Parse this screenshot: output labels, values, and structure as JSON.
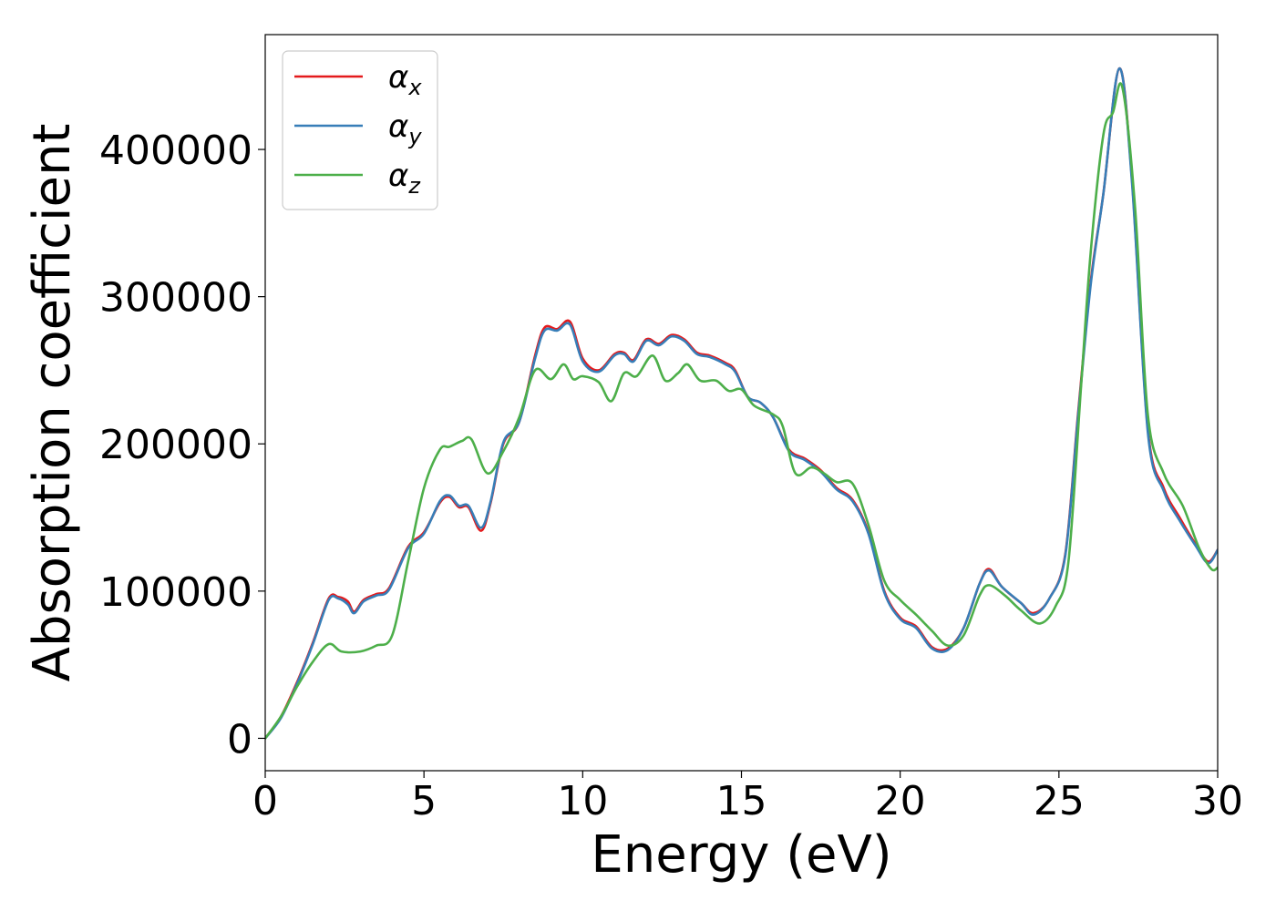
{
  "chart_data": {
    "type": "line",
    "title": "",
    "xlabel": "Energy (eV)",
    "ylabel": "Absorption coefficient",
    "xlim": [
      0,
      30
    ],
    "ylim": [
      -22000,
      478000
    ],
    "xticks": [
      0,
      5,
      10,
      15,
      20,
      25,
      30
    ],
    "yticks": [
      0,
      100000,
      200000,
      300000,
      400000
    ],
    "xtick_labels": [
      "0",
      "5",
      "10",
      "15",
      "20",
      "25",
      "30"
    ],
    "ytick_labels": [
      "0",
      "100000",
      "200000",
      "300000",
      "400000"
    ],
    "grid": false,
    "legend_position": "upper-left",
    "series": [
      {
        "name": "α",
        "subscript": "x",
        "color": "#e41a1c",
        "points": [
          [
            0,
            0
          ],
          [
            0.5,
            15000
          ],
          [
            1,
            38000
          ],
          [
            1.5,
            65000
          ],
          [
            2,
            95000
          ],
          [
            2.3,
            96000
          ],
          [
            2.6,
            93000
          ],
          [
            2.8,
            86000
          ],
          [
            3.1,
            94000
          ],
          [
            3.5,
            98000
          ],
          [
            3.9,
            102000
          ],
          [
            4.5,
            130000
          ],
          [
            5,
            140000
          ],
          [
            5.5,
            160000
          ],
          [
            5.8,
            164000
          ],
          [
            6.1,
            157000
          ],
          [
            6.4,
            157000
          ],
          [
            6.8,
            141000
          ],
          [
            7.1,
            160000
          ],
          [
            7.5,
            200000
          ],
          [
            8,
            215000
          ],
          [
            8.5,
            260000
          ],
          [
            8.8,
            279000
          ],
          [
            9.2,
            278000
          ],
          [
            9.6,
            283000
          ],
          [
            10,
            258000
          ],
          [
            10.5,
            250000
          ],
          [
            11,
            261000
          ],
          [
            11.3,
            262000
          ],
          [
            11.6,
            257000
          ],
          [
            12,
            271000
          ],
          [
            12.4,
            268000
          ],
          [
            12.8,
            274000
          ],
          [
            13.2,
            271000
          ],
          [
            13.6,
            262000
          ],
          [
            14,
            260000
          ],
          [
            14.5,
            255000
          ],
          [
            14.8,
            250000
          ],
          [
            15.2,
            232000
          ],
          [
            15.6,
            228000
          ],
          [
            16,
            218000
          ],
          [
            16.5,
            196000
          ],
          [
            17,
            190000
          ],
          [
            17.5,
            182000
          ],
          [
            18,
            170000
          ],
          [
            18.5,
            162000
          ],
          [
            19,
            140000
          ],
          [
            19.5,
            100000
          ],
          [
            20,
            82000
          ],
          [
            20.5,
            76000
          ],
          [
            21,
            62000
          ],
          [
            21.5,
            61000
          ],
          [
            22,
            75000
          ],
          [
            22.5,
            105000
          ],
          [
            22.8,
            115000
          ],
          [
            23.2,
            103000
          ],
          [
            23.8,
            92000
          ],
          [
            24.2,
            85000
          ],
          [
            24.7,
            95000
          ],
          [
            25.2,
            125000
          ],
          [
            25.6,
            220000
          ],
          [
            26,
            310000
          ],
          [
            26.4,
            370000
          ],
          [
            26.9,
            455000
          ],
          [
            27.3,
            380000
          ],
          [
            27.8,
            210000
          ],
          [
            28.3,
            170000
          ],
          [
            28.8,
            150000
          ],
          [
            29.3,
            132000
          ],
          [
            29.7,
            120000
          ],
          [
            30,
            128000
          ]
        ]
      },
      {
        "name": "α",
        "subscript": "y",
        "color": "#377eb8",
        "points": [
          [
            0,
            0
          ],
          [
            0.5,
            14000
          ],
          [
            1,
            37000
          ],
          [
            1.5,
            64000
          ],
          [
            2,
            94000
          ],
          [
            2.3,
            95000
          ],
          [
            2.6,
            91000
          ],
          [
            2.8,
            85000
          ],
          [
            3.1,
            93000
          ],
          [
            3.5,
            97000
          ],
          [
            3.9,
            101000
          ],
          [
            4.5,
            129000
          ],
          [
            5,
            139000
          ],
          [
            5.5,
            161000
          ],
          [
            5.8,
            165000
          ],
          [
            6.1,
            158000
          ],
          [
            6.4,
            158000
          ],
          [
            6.8,
            143000
          ],
          [
            7.1,
            161000
          ],
          [
            7.5,
            201000
          ],
          [
            8,
            215000
          ],
          [
            8.5,
            258000
          ],
          [
            8.8,
            277000
          ],
          [
            9.2,
            277000
          ],
          [
            9.6,
            281000
          ],
          [
            10,
            256000
          ],
          [
            10.5,
            249000
          ],
          [
            11,
            260000
          ],
          [
            11.3,
            261000
          ],
          [
            11.6,
            256000
          ],
          [
            12,
            270000
          ],
          [
            12.4,
            267000
          ],
          [
            12.8,
            273000
          ],
          [
            13.2,
            270000
          ],
          [
            13.6,
            261000
          ],
          [
            14,
            259000
          ],
          [
            14.5,
            254000
          ],
          [
            14.8,
            249000
          ],
          [
            15.2,
            232000
          ],
          [
            15.6,
            228000
          ],
          [
            16,
            218000
          ],
          [
            16.5,
            195000
          ],
          [
            17,
            189000
          ],
          [
            17.5,
            181000
          ],
          [
            18,
            169000
          ],
          [
            18.5,
            161000
          ],
          [
            19,
            139000
          ],
          [
            19.5,
            99000
          ],
          [
            20,
            81000
          ],
          [
            20.5,
            75000
          ],
          [
            21,
            61000
          ],
          [
            21.5,
            60000
          ],
          [
            22,
            75000
          ],
          [
            22.5,
            105000
          ],
          [
            22.8,
            114000
          ],
          [
            23.2,
            103000
          ],
          [
            23.8,
            92000
          ],
          [
            24.2,
            84000
          ],
          [
            24.7,
            95000
          ],
          [
            25.2,
            124000
          ],
          [
            25.6,
            218000
          ],
          [
            26,
            308000
          ],
          [
            26.4,
            370000
          ],
          [
            26.9,
            455000
          ],
          [
            27.3,
            378000
          ],
          [
            27.8,
            208000
          ],
          [
            28.3,
            168000
          ],
          [
            28.8,
            148000
          ],
          [
            29.3,
            131000
          ],
          [
            29.7,
            119000
          ],
          [
            30,
            128000
          ]
        ]
      },
      {
        "name": "α",
        "subscript": "z",
        "color": "#4daf4a",
        "points": [
          [
            0,
            0
          ],
          [
            0.5,
            15000
          ],
          [
            1,
            35000
          ],
          [
            1.5,
            52000
          ],
          [
            2,
            64000
          ],
          [
            2.4,
            59000
          ],
          [
            3,
            59000
          ],
          [
            3.5,
            63000
          ],
          [
            4,
            70000
          ],
          [
            4.5,
            120000
          ],
          [
            5,
            170000
          ],
          [
            5.5,
            196000
          ],
          [
            5.8,
            198000
          ],
          [
            6.2,
            202000
          ],
          [
            6.5,
            203000
          ],
          [
            7,
            180000
          ],
          [
            7.5,
            195000
          ],
          [
            8,
            218000
          ],
          [
            8.5,
            250000
          ],
          [
            9,
            244000
          ],
          [
            9.4,
            254000
          ],
          [
            9.7,
            244000
          ],
          [
            10,
            246000
          ],
          [
            10.5,
            242000
          ],
          [
            10.9,
            229000
          ],
          [
            11.3,
            248000
          ],
          [
            11.7,
            246000
          ],
          [
            12.2,
            260000
          ],
          [
            12.6,
            243000
          ],
          [
            13,
            248000
          ],
          [
            13.3,
            254000
          ],
          [
            13.7,
            243000
          ],
          [
            14.2,
            243000
          ],
          [
            14.6,
            236000
          ],
          [
            15,
            237000
          ],
          [
            15.4,
            226000
          ],
          [
            16,
            220000
          ],
          [
            16.3,
            212000
          ],
          [
            16.7,
            180000
          ],
          [
            17.2,
            184000
          ],
          [
            17.6,
            180000
          ],
          [
            18,
            174000
          ],
          [
            18.5,
            173000
          ],
          [
            19,
            145000
          ],
          [
            19.5,
            107000
          ],
          [
            20,
            94000
          ],
          [
            20.5,
            84000
          ],
          [
            21,
            73000
          ],
          [
            21.5,
            63000
          ],
          [
            22,
            70000
          ],
          [
            22.5,
            97000
          ],
          [
            22.8,
            104000
          ],
          [
            23.3,
            97000
          ],
          [
            23.8,
            87000
          ],
          [
            24.4,
            78000
          ],
          [
            24.9,
            90000
          ],
          [
            25.3,
            120000
          ],
          [
            25.7,
            240000
          ],
          [
            26,
            330000
          ],
          [
            26.4,
            410000
          ],
          [
            26.7,
            425000
          ],
          [
            27,
            442000
          ],
          [
            27.4,
            360000
          ],
          [
            27.8,
            220000
          ],
          [
            28.3,
            180000
          ],
          [
            28.9,
            158000
          ],
          [
            29.4,
            130000
          ],
          [
            29.8,
            115000
          ],
          [
            30,
            116000
          ]
        ]
      }
    ]
  }
}
